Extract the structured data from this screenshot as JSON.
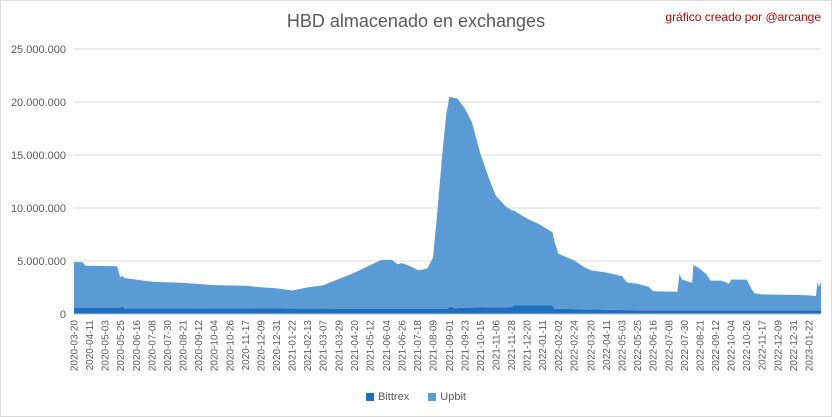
{
  "chart_data": {
    "type": "area",
    "title": "HBD almacenado en exchanges",
    "subtitle": "gráfico creado por @arcange",
    "ylim": [
      0,
      25000000
    ],
    "y_ticks": [
      "0",
      "5.000.000",
      "10.000.000",
      "15.000.000",
      "20.000.000",
      "25.000.000"
    ],
    "y_tick_values": [
      0,
      5000000,
      10000000,
      15000000,
      20000000,
      25000000
    ],
    "x_tick_labels": [
      "2020-03-20",
      "2020-04-11",
      "2020-05-03",
      "2020-05-25",
      "2020-06-16",
      "2020-07-08",
      "2020-07-30",
      "2020-08-21",
      "2020-09-12",
      "2020-10-04",
      "2020-10-26",
      "2020-11-17",
      "2020-12-09",
      "2020-12-31",
      "2021-01-22",
      "2021-02-13",
      "2021-03-07",
      "2021-03-29",
      "2021-04-20",
      "2021-05-12",
      "2021-06-04",
      "2021-06-26",
      "2021-07-18",
      "2021-08-09",
      "2021-09-01",
      "2021-09-23",
      "2021-10-15",
      "2021-11-06",
      "2021-11-28",
      "2021-12-20",
      "2022-01-11",
      "2022-02-02",
      "2022-02-24",
      "2022-03-20",
      "2022-04-11",
      "2022-05-03",
      "2022-05-25",
      "2022-06-16",
      "2022-07-08",
      "2022-07-30",
      "2022-08-21",
      "2022-09-12",
      "2022-10-04",
      "2022-10-26",
      "2022-11-17",
      "2022-12-09",
      "2022-12-31",
      "2023-01-22"
    ],
    "grid": true,
    "legend_position": "bottom",
    "series": [
      {
        "name": "Bittrex",
        "color": "#1f6fbf",
        "points": [
          [
            "2020-03-20",
            600000
          ],
          [
            "2020-05-25",
            600000
          ],
          [
            "2020-05-27",
            750000
          ],
          [
            "2020-05-30",
            550000
          ],
          [
            "2021-04-20",
            500000
          ],
          [
            "2021-08-30",
            500000
          ],
          [
            "2021-09-01",
            700000
          ],
          [
            "2021-09-10",
            550000
          ],
          [
            "2021-09-23",
            600000
          ],
          [
            "2021-11-28",
            650000
          ],
          [
            "2021-12-01",
            800000
          ],
          [
            "2022-01-25",
            800000
          ],
          [
            "2022-01-27",
            500000
          ],
          [
            "2022-05-25",
            350000
          ],
          [
            "2023-02-08",
            350000
          ]
        ]
      },
      {
        "name": "Upbit",
        "color": "#5b9bd5",
        "points": [
          [
            "2020-03-20",
            4300000
          ],
          [
            "2020-04-01",
            4300000
          ],
          [
            "2020-04-05",
            3950000
          ],
          [
            "2020-05-20",
            3900000
          ],
          [
            "2020-05-24",
            2900000
          ],
          [
            "2020-06-16",
            2700000
          ],
          [
            "2020-07-08",
            2500000
          ],
          [
            "2020-08-21",
            2400000
          ],
          [
            "2020-10-04",
            2200000
          ],
          [
            "2020-11-17",
            2150000
          ],
          [
            "2020-12-09",
            2000000
          ],
          [
            "2021-01-01",
            1900000
          ],
          [
            "2021-01-22",
            1700000
          ],
          [
            "2021-02-13",
            2000000
          ],
          [
            "2021-03-07",
            2200000
          ],
          [
            "2021-03-29",
            2800000
          ],
          [
            "2021-04-20",
            3400000
          ],
          [
            "2021-05-12",
            4100000
          ],
          [
            "2021-05-28",
            4600000
          ],
          [
            "2021-06-12",
            4600000
          ],
          [
            "2021-06-20",
            4200000
          ],
          [
            "2021-06-26",
            4300000
          ],
          [
            "2021-07-08",
            4000000
          ],
          [
            "2021-07-20",
            3600000
          ],
          [
            "2021-08-01",
            3800000
          ],
          [
            "2021-08-09",
            4800000
          ],
          [
            "2021-08-15",
            9000000
          ],
          [
            "2021-08-22",
            14500000
          ],
          [
            "2021-08-28",
            18500000
          ],
          [
            "2021-09-01",
            19800000
          ],
          [
            "2021-09-12",
            19800000
          ],
          [
            "2021-09-23",
            18800000
          ],
          [
            "2021-10-03",
            17500000
          ],
          [
            "2021-10-15",
            14500000
          ],
          [
            "2021-10-28",
            12000000
          ],
          [
            "2021-11-06",
            10500000
          ],
          [
            "2021-11-20",
            9500000
          ],
          [
            "2021-12-05",
            8800000
          ],
          [
            "2021-12-20",
            8200000
          ],
          [
            "2022-01-05",
            7700000
          ],
          [
            "2022-01-15",
            7300000
          ],
          [
            "2022-01-25",
            6900000
          ],
          [
            "2022-02-02",
            5200000
          ],
          [
            "2022-02-24",
            4600000
          ],
          [
            "2022-03-10",
            4000000
          ],
          [
            "2022-03-20",
            3700000
          ],
          [
            "2022-04-11",
            3500000
          ],
          [
            "2022-05-03",
            3200000
          ],
          [
            "2022-05-10",
            2600000
          ],
          [
            "2022-05-25",
            2500000
          ],
          [
            "2022-06-10",
            2200000
          ],
          [
            "2022-06-16",
            1800000
          ],
          [
            "2022-07-20",
            1750000
          ],
          [
            "2022-07-23",
            3400000
          ],
          [
            "2022-07-27",
            2900000
          ],
          [
            "2022-08-10",
            2600000
          ],
          [
            "2022-08-12",
            4300000
          ],
          [
            "2022-08-21",
            3900000
          ],
          [
            "2022-08-30",
            3400000
          ],
          [
            "2022-09-05",
            2800000
          ],
          [
            "2022-09-20",
            2800000
          ],
          [
            "2022-10-01",
            2500000
          ],
          [
            "2022-10-04",
            2900000
          ],
          [
            "2022-10-26",
            2900000
          ],
          [
            "2022-11-02",
            2000000
          ],
          [
            "2022-11-06",
            1600000
          ],
          [
            "2022-11-17",
            1500000
          ],
          [
            "2022-12-31",
            1450000
          ],
          [
            "2023-01-22",
            1400000
          ],
          [
            "2023-02-01",
            1350000
          ],
          [
            "2023-02-03",
            2700000
          ],
          [
            "2023-02-05",
            2200000
          ],
          [
            "2023-02-08",
            2700000
          ]
        ]
      }
    ]
  }
}
